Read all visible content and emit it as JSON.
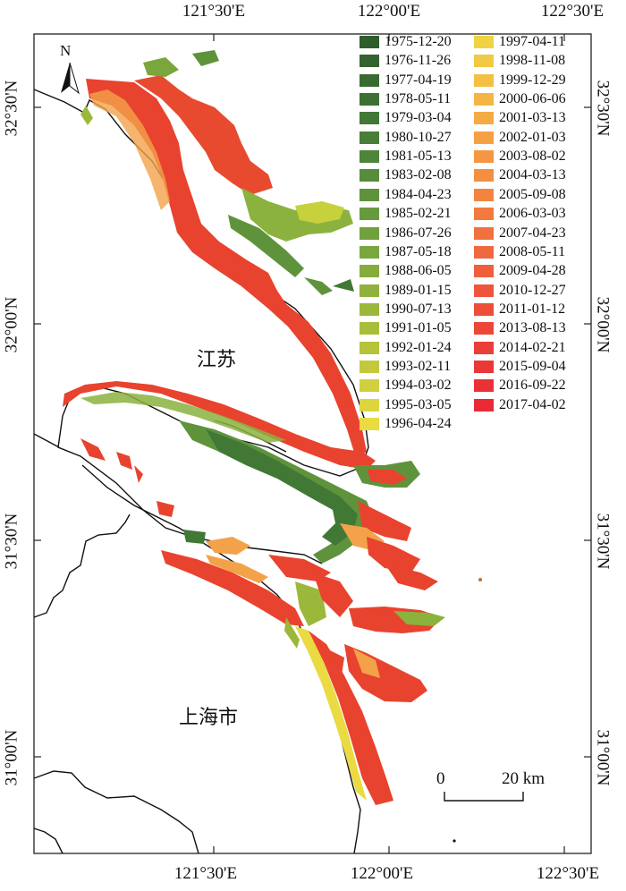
{
  "map": {
    "place_labels": {
      "jiangsu": "江苏",
      "shanghai": "上海市"
    },
    "north_label": "N",
    "scale": {
      "start": "0",
      "end": "20 km"
    },
    "lon_ticks": [
      "121°30'E",
      "122°00'E",
      "122°30'E"
    ],
    "lat_ticks": [
      "32°30'N",
      "32°00'N",
      "31°30'N",
      "31°00'N"
    ],
    "legend": {
      "entries": [
        {
          "date": "1975-12-20",
          "color": "#2f5d2c"
        },
        {
          "date": "1976-11-26",
          "color": "#33632e"
        },
        {
          "date": "1977-04-19",
          "color": "#386a31"
        },
        {
          "date": "1978-05-11",
          "color": "#3d7134"
        },
        {
          "date": "1979-03-04",
          "color": "#427836"
        },
        {
          "date": "1980-10-27",
          "color": "#487e38"
        },
        {
          "date": "1981-05-13",
          "color": "#4f853a"
        },
        {
          "date": "1983-02-08",
          "color": "#568c3b"
        },
        {
          "date": "1984-04-23",
          "color": "#5e933c"
        },
        {
          "date": "1985-02-21",
          "color": "#67993d"
        },
        {
          "date": "1986-07-26",
          "color": "#71a03e"
        },
        {
          "date": "1987-05-18",
          "color": "#7aa63e"
        },
        {
          "date": "1988-06-05",
          "color": "#85ac3d"
        },
        {
          "date": "1989-01-15",
          "color": "#90b23c"
        },
        {
          "date": "1990-07-13",
          "color": "#9cb83b"
        },
        {
          "date": "1991-01-05",
          "color": "#a8be3a"
        },
        {
          "date": "1992-01-24",
          "color": "#b5c43a"
        },
        {
          "date": "1993-02-11",
          "color": "#c2ca3b"
        },
        {
          "date": "1994-03-02",
          "color": "#cfd03c"
        },
        {
          "date": "1995-03-05",
          "color": "#dcd63e"
        },
        {
          "date": "1996-04-24",
          "color": "#e9db41"
        },
        {
          "date": "1997-04-11",
          "color": "#efd343"
        },
        {
          "date": "1998-11-08",
          "color": "#f1c944"
        },
        {
          "date": "1999-12-29",
          "color": "#f3bf45"
        },
        {
          "date": "2000-06-06",
          "color": "#f4b545"
        },
        {
          "date": "2001-03-13",
          "color": "#f5ab44"
        },
        {
          "date": "2002-01-03",
          "color": "#f5a143"
        },
        {
          "date": "2003-08-02",
          "color": "#f59742"
        },
        {
          "date": "2004-03-13",
          "color": "#f48e41"
        },
        {
          "date": "2005-09-08",
          "color": "#f38440"
        },
        {
          "date": "2006-03-03",
          "color": "#f27a3f"
        },
        {
          "date": "2007-04-23",
          "color": "#f1713e"
        },
        {
          "date": "2008-05-11",
          "color": "#f0683d"
        },
        {
          "date": "2009-04-28",
          "color": "#ef5f3c"
        },
        {
          "date": "2010-12-27",
          "color": "#ee563b"
        },
        {
          "date": "2011-01-12",
          "color": "#ed4e3a"
        },
        {
          "date": "2013-08-13",
          "color": "#ec4639"
        },
        {
          "date": "2014-02-21",
          "color": "#eb3e38"
        },
        {
          "date": "2015-09-04",
          "color": "#ea3737"
        },
        {
          "date": "2016-09-22",
          "color": "#e93136"
        },
        {
          "date": "2017-04-02",
          "color": "#e82b35"
        }
      ]
    }
  }
}
